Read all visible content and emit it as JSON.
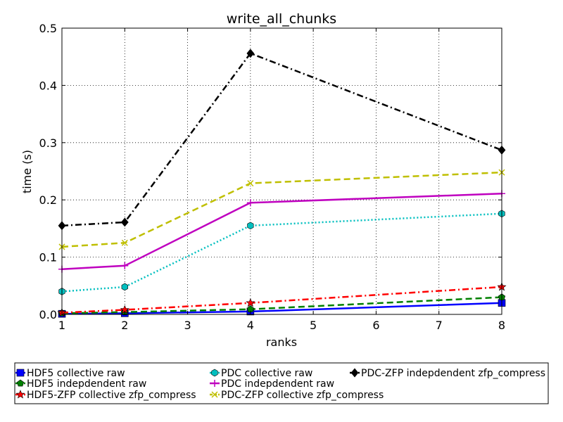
{
  "chart_data": {
    "type": "line",
    "title": "write_all_chunks",
    "xlabel": "ranks",
    "ylabel": "time (s)",
    "xlim": [
      1,
      8
    ],
    "ylim": [
      0,
      0.5
    ],
    "xticks": [
      "1",
      "2",
      "3",
      "4",
      "5",
      "6",
      "7",
      "8"
    ],
    "yticks": [
      "0.0",
      "0.1",
      "0.2",
      "0.3",
      "0.4",
      "0.5"
    ],
    "grid": true,
    "legend_position": "below plot",
    "x": [
      1,
      2,
      4,
      8
    ],
    "series": [
      {
        "name": "HDF5 collective raw",
        "values": [
          0.001,
          0.002,
          0.005,
          0.02
        ],
        "color": "#0000ff",
        "line": "solid",
        "marker": "square"
      },
      {
        "name": "HDF5 indepdendent raw",
        "values": [
          0.002,
          0.004,
          0.009,
          0.03
        ],
        "color": "#008000",
        "line": "dashed",
        "marker": "pentagon"
      },
      {
        "name": "HDF5-ZFP collective zfp_compress",
        "values": [
          0.003,
          0.008,
          0.02,
          0.048
        ],
        "color": "#ff0000",
        "line": "dashdot",
        "marker": "star"
      },
      {
        "name": "PDC collective raw",
        "values": [
          0.04,
          0.048,
          0.155,
          0.176
        ],
        "color": "#00bfbf",
        "line": "dotted",
        "marker": "hexagon"
      },
      {
        "name": "PDC indepdendent raw",
        "values": [
          0.079,
          0.085,
          0.195,
          0.211
        ],
        "color": "#bf00bf",
        "line": "solid",
        "marker": "plus"
      },
      {
        "name": "PDC-ZFP collective zfp_compress",
        "values": [
          0.118,
          0.125,
          0.229,
          0.248
        ],
        "color": "#bfbf00",
        "line": "dashed",
        "marker": "x"
      },
      {
        "name": "PDC-ZFP indepdendent zfp_compress",
        "values": [
          0.155,
          0.161,
          0.456,
          0.287
        ],
        "color": "#000000",
        "line": "dashdot",
        "marker": "diamond"
      }
    ]
  }
}
